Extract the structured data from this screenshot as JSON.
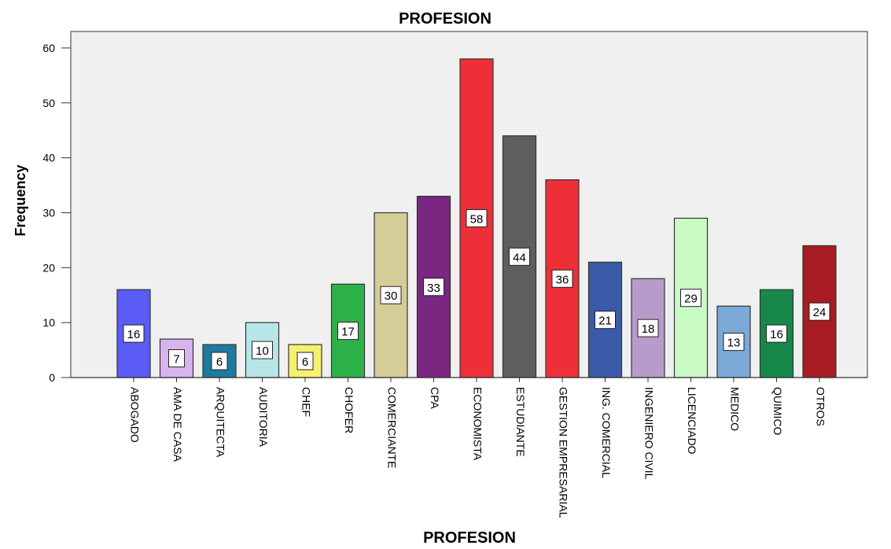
{
  "chart_data": {
    "type": "bar",
    "title": "PROFESION",
    "xlabel": "PROFESION",
    "ylabel": "Frequency",
    "ylim": [
      0,
      63
    ],
    "yticks": [
      0,
      10,
      20,
      30,
      40,
      50,
      60
    ],
    "grid": false,
    "legend": "none",
    "plot_background": "#f0f0f0",
    "bar_border_color": "#333333",
    "categories": [
      "ABOGADO",
      "AMA DE CASA",
      "ARQUITECTA",
      "AUDITORIA",
      "CHEF",
      "CHOFER",
      "COMERCIANTE",
      "CPA",
      "ECONOMISTA",
      "ESTUDIANTE",
      "GESTION EMPRESARIAL",
      "ING. COMERCIAL",
      "INGENIERO CIVIL",
      "LICENCIADO",
      "MEDICO",
      "QUIMICO",
      "OTROS"
    ],
    "values": [
      16,
      7,
      6,
      10,
      6,
      17,
      30,
      33,
      58,
      44,
      36,
      21,
      18,
      29,
      13,
      16,
      24
    ],
    "colors": [
      "#5b5bf5",
      "#d8b4ee",
      "#1f7a9f",
      "#b6e6e8",
      "#f5f070",
      "#2db24a",
      "#d4cd98",
      "#7a2781",
      "#ef2f38",
      "#5e5e5e",
      "#ef2f38",
      "#3a5aa8",
      "#b79bcd",
      "#c9fac4",
      "#7aa9d8",
      "#16894a",
      "#a61c22"
    ]
  }
}
